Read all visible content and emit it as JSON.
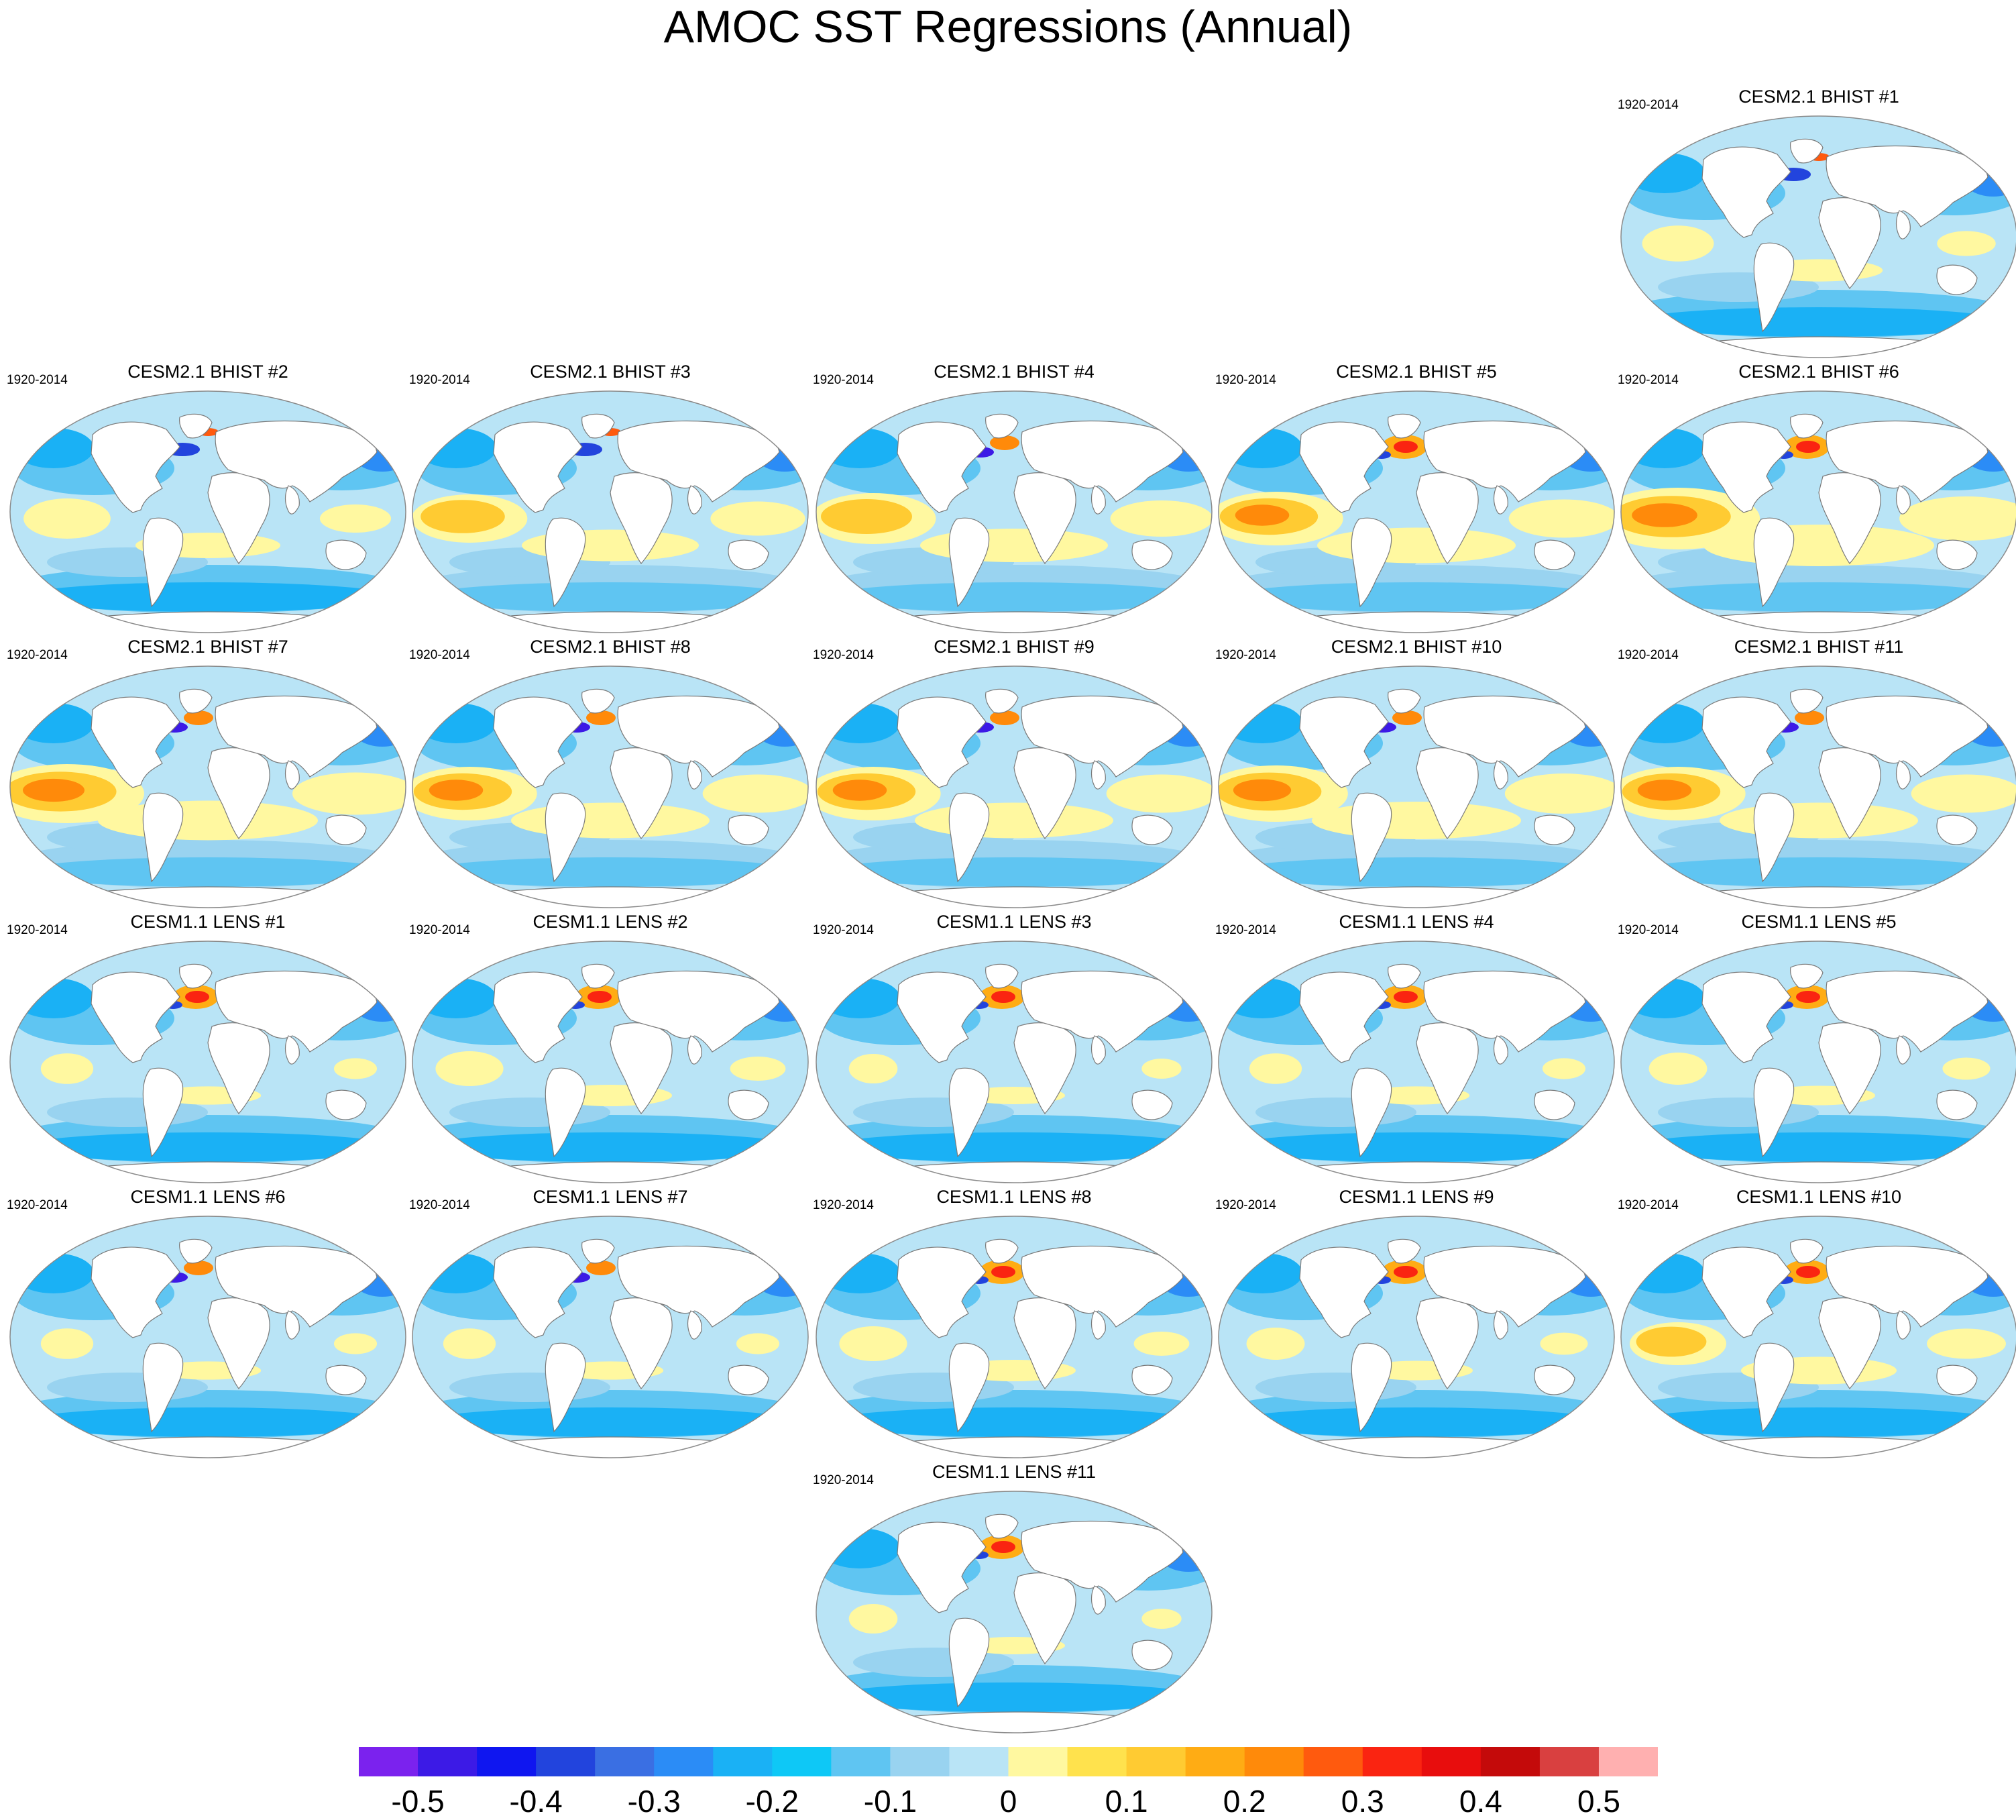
{
  "title": "AMOC SST Regressions (Annual)",
  "period_label": "1920-2014",
  "panels": [
    {
      "title": "CESM2.1 BHIST #1",
      "row": 0,
      "col": 4,
      "warm": 0.22,
      "north_atlantic": "cold"
    },
    {
      "title": "CESM2.1 BHIST #2",
      "row": 1,
      "col": 0,
      "warm": 0.3,
      "north_atlantic": "cold"
    },
    {
      "title": "CESM2.1 BHIST #3",
      "row": 1,
      "col": 1,
      "warm": 0.45,
      "north_atlantic": "cold"
    },
    {
      "title": "CESM2.1 BHIST #4",
      "row": 1,
      "col": 2,
      "warm": 0.5,
      "north_atlantic": "mixed"
    },
    {
      "title": "CESM2.1 BHIST #5",
      "row": 1,
      "col": 3,
      "warm": 0.55,
      "north_atlantic": "warm"
    },
    {
      "title": "CESM2.1 BHIST #6",
      "row": 1,
      "col": 4,
      "warm": 0.7,
      "north_atlantic": "warm"
    },
    {
      "title": "CESM2.1 BHIST #7",
      "row": 2,
      "col": 0,
      "warm": 0.65,
      "north_atlantic": "mixed"
    },
    {
      "title": "CESM2.1 BHIST #8",
      "row": 2,
      "col": 1,
      "warm": 0.55,
      "north_atlantic": "mixed"
    },
    {
      "title": "CESM2.1 BHIST #9",
      "row": 2,
      "col": 2,
      "warm": 0.55,
      "north_atlantic": "mixed"
    },
    {
      "title": "CESM2.1 BHIST #10",
      "row": 2,
      "col": 3,
      "warm": 0.6,
      "north_atlantic": "mixed"
    },
    {
      "title": "CESM2.1 BHIST #11",
      "row": 2,
      "col": 4,
      "warm": 0.55,
      "north_atlantic": "mixed"
    },
    {
      "title": "CESM1.1 LENS #1",
      "row": 3,
      "col": 0,
      "warm": 0.12,
      "north_atlantic": "warm"
    },
    {
      "title": "CESM1.1 LENS #2",
      "row": 3,
      "col": 1,
      "warm": 0.2,
      "north_atlantic": "warm"
    },
    {
      "title": "CESM1.1 LENS #3",
      "row": 3,
      "col": 2,
      "warm": 0.1,
      "north_atlantic": "warm"
    },
    {
      "title": "CESM1.1 LENS #4",
      "row": 3,
      "col": 3,
      "warm": 0.12,
      "north_atlantic": "warm"
    },
    {
      "title": "CESM1.1 LENS #5",
      "row": 3,
      "col": 4,
      "warm": 0.15,
      "north_atlantic": "warm"
    },
    {
      "title": "CESM1.1 LENS #6",
      "row": 4,
      "col": 0,
      "warm": 0.12,
      "north_atlantic": "mixed"
    },
    {
      "title": "CESM1.1 LENS #7",
      "row": 4,
      "col": 1,
      "warm": 0.12,
      "north_atlantic": "mixed"
    },
    {
      "title": "CESM1.1 LENS #8",
      "row": 4,
      "col": 2,
      "warm": 0.2,
      "north_atlantic": "warm"
    },
    {
      "title": "CESM1.1 LENS #9",
      "row": 4,
      "col": 3,
      "warm": 0.15,
      "north_atlantic": "warm"
    },
    {
      "title": "CESM1.1 LENS #10",
      "row": 4,
      "col": 4,
      "warm": 0.35,
      "north_atlantic": "warm"
    },
    {
      "title": "CESM1.1 LENS #11",
      "row": 5,
      "col": 2,
      "warm": 0.1,
      "north_atlantic": "warm"
    }
  ],
  "colorbar": {
    "min": -0.55,
    "max": 0.55,
    "step": 0.05,
    "colors": [
      "#7b22ee",
      "#3c1ae6",
      "#0f16f0",
      "#2244dd",
      "#3a6fe3",
      "#2b8cf6",
      "#1ab1f5",
      "#0ec8f6",
      "#5fc5f2",
      "#99d3f0",
      "#b9e4f6",
      "#fff8a0",
      "#ffe24d",
      "#ffcb32",
      "#ffac14",
      "#ff8a0a",
      "#ff5a0e",
      "#fa2411",
      "#e80d0d",
      "#c40a0a",
      "#d94040",
      "#ffb0b0"
    ],
    "labels": [
      "-0.5",
      "-0.4",
      "-0.3",
      "-0.2",
      "-0.1",
      "0",
      "0.1",
      "0.2",
      "0.3",
      "0.4",
      "0.5"
    ]
  },
  "colors": {
    "land": "#ffffff",
    "coast": "#7a7a7a",
    "ocean_cold": "#99d3f0",
    "ocean_warm": "#fff8a0"
  }
}
